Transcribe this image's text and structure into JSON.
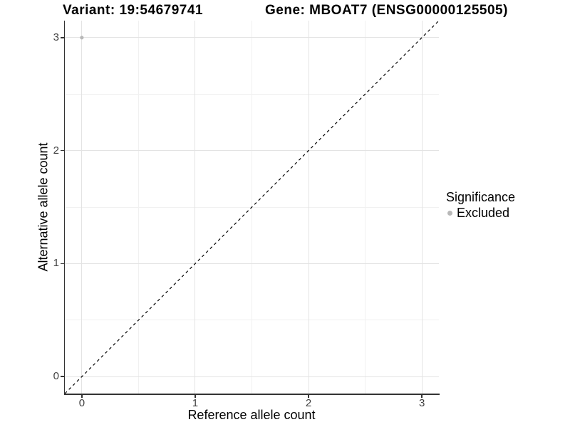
{
  "header": {
    "variant_title": "Variant: 19:54679741",
    "gene_title": "Gene: MBOAT7 (ENSG00000125505)"
  },
  "chart_data": {
    "type": "scatter",
    "xlabel": "Reference allele count",
    "ylabel": "Alternative allele count",
    "xlim": [
      -0.15,
      3.15
    ],
    "ylim": [
      -0.15,
      3.15
    ],
    "x_ticks": [
      0,
      1,
      2,
      3
    ],
    "y_ticks": [
      0,
      1,
      2,
      3
    ],
    "x_minor_ticks": [
      0.5,
      1.5,
      2.5
    ],
    "y_minor_ticks": [
      0.5,
      1.5,
      2.5
    ],
    "grid": "major+minor",
    "legend_position": "right",
    "series": [
      {
        "name": "Excluded",
        "points": [
          {
            "x": 0,
            "y": 3
          }
        ]
      }
    ],
    "reference_line": {
      "slope": 1,
      "intercept": 0,
      "style": "dashed"
    }
  },
  "legend": {
    "title": "Significance",
    "items": [
      {
        "label": "Excluded",
        "color": "#b8b8b8"
      }
    ]
  },
  "colors": {
    "point": "#b8b8b8",
    "grid_major": "#e3e3e3",
    "grid_minor": "#f1f1f1",
    "axis_line": "#333333",
    "tick_label": "#404040",
    "reference_line": "#000000",
    "background": "#ffffff"
  }
}
